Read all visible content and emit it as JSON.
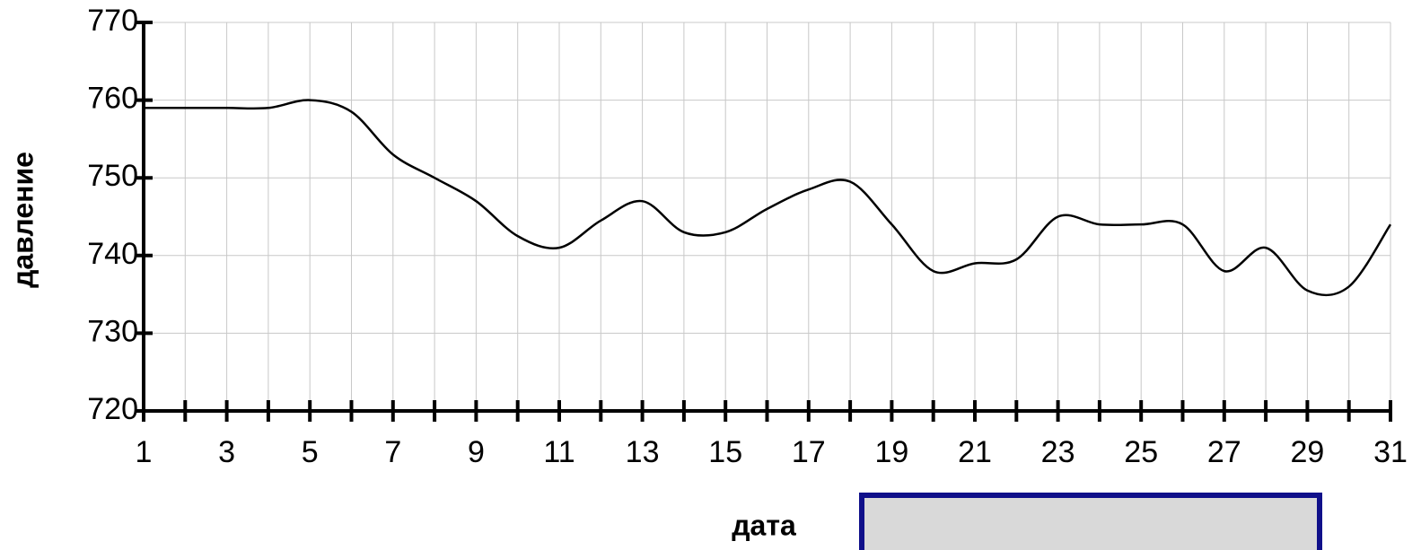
{
  "chart_data": {
    "type": "line",
    "x_label": "дата",
    "y_label": "давление",
    "x": [
      1,
      2,
      3,
      4,
      5,
      6,
      7,
      8,
      9,
      10,
      11,
      12,
      13,
      14,
      15,
      16,
      17,
      18,
      19,
      20,
      21,
      22,
      23,
      24,
      25,
      26,
      27,
      28,
      29,
      30,
      31
    ],
    "series": [
      {
        "color": "#000000",
        "values": [
          759,
          759,
          759,
          759,
          760,
          758.5,
          753,
          750,
          747,
          742.5,
          741,
          744.5,
          747,
          743,
          743,
          746,
          748.5,
          749.5,
          744,
          738,
          739,
          739.5,
          745,
          744,
          744,
          744,
          738,
          741,
          735.5,
          736,
          744
        ]
      }
    ],
    "xlim": [
      1,
      31
    ],
    "xticks": [
      1,
      3,
      5,
      7,
      9,
      11,
      13,
      15,
      17,
      19,
      21,
      23,
      25,
      27,
      29,
      31
    ],
    "xminor_ticks": [
      1,
      2,
      3,
      4,
      5,
      6,
      7,
      8,
      9,
      10,
      11,
      12,
      13,
      14,
      15,
      16,
      17,
      18,
      19,
      20,
      21,
      22,
      23,
      24,
      25,
      26,
      27,
      28,
      29,
      30,
      31
    ],
    "ylim": [
      720,
      770
    ],
    "yticks": [
      720,
      730,
      740,
      750,
      760,
      770
    ],
    "grid": true
  }
}
